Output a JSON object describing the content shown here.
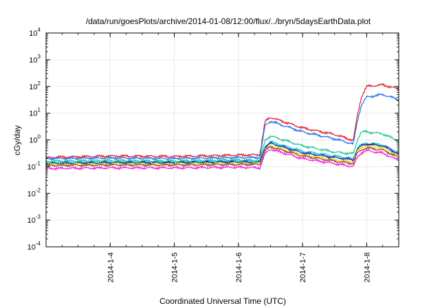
{
  "chart_data": {
    "type": "line",
    "title": "/data/run/goesPlots/archive/2014-01-08/12:00/flux/../bryn/5daysEarthData.plot",
    "xlabel": "Coordinated Universal Time (UTC)",
    "ylabel": "cGy/day",
    "xscale": "time",
    "yscale": "log",
    "xlim": [
      "2014-01-03T00:00",
      "2014-01-08T12:00"
    ],
    "ylim": [
      0.0001,
      10000
    ],
    "grid": true,
    "x_ticks": [
      "2014-1-4",
      "2014-1-5",
      "2014-1-6",
      "2014-1-7",
      "2014-1-8"
    ],
    "y_ticks": [
      {
        "base": "10",
        "exp": "-4"
      },
      {
        "base": "10",
        "exp": "-3"
      },
      {
        "base": "10",
        "exp": "-2"
      },
      {
        "base": "10",
        "exp": "-1"
      },
      {
        "base": "10",
        "exp": "0"
      },
      {
        "base": "10",
        "exp": "1"
      },
      {
        "base": "10",
        "exp": "2"
      },
      {
        "base": "10",
        "exp": "3"
      },
      {
        "base": "10",
        "exp": "4"
      }
    ],
    "series": [
      {
        "color": "#e8171b",
        "x": [
          "2014-01-03T00:00",
          "2014-01-04T00:00",
          "2014-01-05T00:00",
          "2014-01-06T00:00",
          "2014-01-06T08:00",
          "2014-01-06T10:00",
          "2014-01-06T12:00",
          "2014-01-07T00:00",
          "2014-01-07T12:00",
          "2014-01-07T19:00",
          "2014-01-07T20:30",
          "2014-01-07T22:00",
          "2014-01-08T00:00",
          "2014-01-08T06:00",
          "2014-01-08T12:00"
        ],
        "y": [
          0.22,
          0.25,
          0.24,
          0.27,
          0.28,
          5.0,
          7.0,
          2.8,
          1.6,
          0.95,
          8.0,
          40,
          100,
          115,
          80
        ]
      },
      {
        "color": "#1a6ef0",
        "x": [
          "2014-01-03T00:00",
          "2014-01-04T00:00",
          "2014-01-05T00:00",
          "2014-01-06T00:00",
          "2014-01-06T08:00",
          "2014-01-06T10:00",
          "2014-01-06T12:00",
          "2014-01-07T00:00",
          "2014-01-07T12:00",
          "2014-01-07T19:00",
          "2014-01-07T20:30",
          "2014-01-07T22:00",
          "2014-01-08T00:00",
          "2014-01-08T06:00",
          "2014-01-08T12:00"
        ],
        "y": [
          0.2,
          0.21,
          0.2,
          0.22,
          0.22,
          3.5,
          5.0,
          2.0,
          1.1,
          0.7,
          5.0,
          20,
          40,
          50,
          32
        ]
      },
      {
        "color": "#20c090",
        "x": [
          "2014-01-03T00:00",
          "2014-01-04T00:00",
          "2014-01-05T00:00",
          "2014-01-06T00:00",
          "2014-01-06T08:00",
          "2014-01-06T10:00",
          "2014-01-06T12:00",
          "2014-01-07T00:00",
          "2014-01-07T12:00",
          "2014-01-07T19:00",
          "2014-01-07T20:30",
          "2014-01-07T22:00",
          "2014-01-08T00:00",
          "2014-01-08T06:00",
          "2014-01-08T12:00"
        ],
        "y": [
          0.16,
          0.17,
          0.16,
          0.18,
          0.17,
          1.0,
          1.4,
          0.6,
          0.35,
          0.3,
          1.0,
          2.0,
          2.0,
          1.7,
          0.9
        ]
      },
      {
        "color": "#00cfe8",
        "x": [
          "2014-01-03T00:00",
          "2014-01-04T00:00",
          "2014-01-05T00:00",
          "2014-01-06T00:00",
          "2014-01-06T08:00",
          "2014-01-06T10:00",
          "2014-01-06T12:00",
          "2014-01-07T00:00",
          "2014-01-07T12:00",
          "2014-01-07T19:00",
          "2014-01-07T20:30",
          "2014-01-07T22:00",
          "2014-01-08T00:00",
          "2014-01-08T06:00",
          "2014-01-08T12:00"
        ],
        "y": [
          0.14,
          0.15,
          0.15,
          0.16,
          0.16,
          0.6,
          0.85,
          0.38,
          0.25,
          0.2,
          0.5,
          0.65,
          0.75,
          0.65,
          0.33
        ]
      },
      {
        "color": "#1a1a9a",
        "x": [
          "2014-01-03T00:00",
          "2014-01-04T00:00",
          "2014-01-05T00:00",
          "2014-01-06T00:00",
          "2014-01-06T08:00",
          "2014-01-06T10:00",
          "2014-01-06T12:00",
          "2014-01-07T00:00",
          "2014-01-07T12:00",
          "2014-01-07T19:00",
          "2014-01-07T20:30",
          "2014-01-07T22:00",
          "2014-01-08T00:00",
          "2014-01-08T06:00",
          "2014-01-08T12:00"
        ],
        "y": [
          0.13,
          0.14,
          0.14,
          0.15,
          0.14,
          0.55,
          0.75,
          0.33,
          0.22,
          0.18,
          0.45,
          0.6,
          0.7,
          0.6,
          0.3
        ]
      },
      {
        "color": "#f0e010",
        "x": [
          "2014-01-03T00:00",
          "2014-01-04T00:00",
          "2014-01-05T00:00",
          "2014-01-06T00:00",
          "2014-01-06T08:00",
          "2014-01-06T10:00",
          "2014-01-06T12:00",
          "2014-01-07T00:00",
          "2014-01-07T12:00",
          "2014-01-07T19:00",
          "2014-01-07T20:30",
          "2014-01-07T22:00",
          "2014-01-08T00:00",
          "2014-01-08T06:00",
          "2014-01-08T12:00"
        ],
        "y": [
          0.12,
          0.125,
          0.125,
          0.13,
          0.13,
          0.45,
          0.6,
          0.28,
          0.18,
          0.15,
          0.38,
          0.5,
          0.6,
          0.5,
          0.25
        ]
      },
      {
        "color": "#8a4a3a",
        "x": [
          "2014-01-03T00:00",
          "2014-01-04T00:00",
          "2014-01-05T00:00",
          "2014-01-06T00:00",
          "2014-01-06T08:00",
          "2014-01-06T10:00",
          "2014-01-06T12:00",
          "2014-01-07T00:00",
          "2014-01-07T12:00",
          "2014-01-07T19:00",
          "2014-01-07T20:30",
          "2014-01-07T22:00",
          "2014-01-08T00:00",
          "2014-01-08T06:00",
          "2014-01-08T12:00"
        ],
        "y": [
          0.11,
          0.115,
          0.115,
          0.12,
          0.12,
          0.4,
          0.55,
          0.25,
          0.16,
          0.13,
          0.32,
          0.42,
          0.5,
          0.42,
          0.22
        ]
      },
      {
        "color": "#ff10e0",
        "x": [
          "2014-01-03T00:00",
          "2014-01-04T00:00",
          "2014-01-05T00:00",
          "2014-01-06T00:00",
          "2014-01-06T08:00",
          "2014-01-06T10:00",
          "2014-01-06T12:00",
          "2014-01-07T00:00",
          "2014-01-07T12:00",
          "2014-01-07T19:00",
          "2014-01-07T20:30",
          "2014-01-07T22:00",
          "2014-01-08T00:00",
          "2014-01-08T06:00",
          "2014-01-08T12:00"
        ],
        "y": [
          0.085,
          0.09,
          0.09,
          0.095,
          0.09,
          0.3,
          0.45,
          0.2,
          0.13,
          0.1,
          0.22,
          0.33,
          0.4,
          0.32,
          0.17
        ]
      }
    ]
  }
}
